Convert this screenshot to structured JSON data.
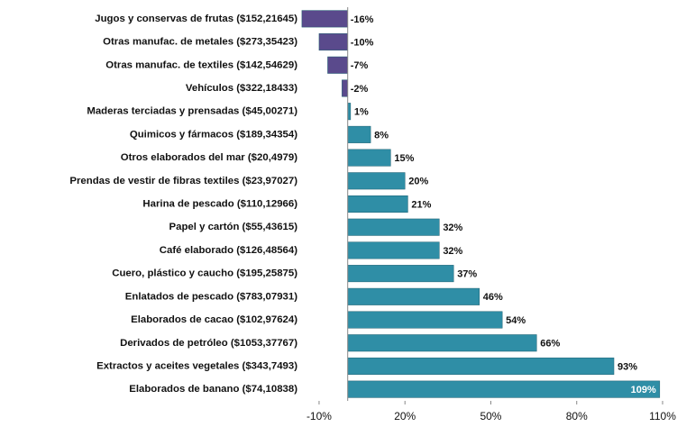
{
  "chart_data": {
    "type": "bar",
    "orientation": "horizontal",
    "categories": [
      "Jugos y conservas de frutas ($152,21645)",
      "Otras manufac. de metales ($273,35423)",
      "Otras manufac. de textiles ($142,54629)",
      "Vehículos ($322,18433)",
      "Maderas terciadas y prensadas  ($45,00271)",
      "Quimicos y fármacos ($189,34354)",
      "Otros elaborados del mar ($20,4979)",
      "Prendas de vestir de fibras textiles ($23,97027)",
      "Harina de pescado ($110,12966)",
      "Papel y cartón ($55,43615)",
      "Café elaborado ($126,48564)",
      "Cuero, plástico y caucho ($195,25875)",
      "Enlatados de pescado ($783,07931)",
      "Elaborados de cacao ($102,97624)",
      "Derivados de petróleo ($1053,37767)",
      "Extractos y aceites vegetales ($343,7493)",
      "Elaborados de  banano ($74,10838)"
    ],
    "values": [
      -16,
      -10,
      -7,
      -2,
      1,
      8,
      15,
      20,
      21,
      32,
      32,
      37,
      46,
      54,
      66,
      93,
      109
    ],
    "value_labels": [
      "-16%",
      "-10%",
      "-7%",
      "-2%",
      "1%",
      "8%",
      "15%",
      "20%",
      "21%",
      "32%",
      "32%",
      "37%",
      "46%",
      "54%",
      "66%",
      "93%",
      "109%"
    ],
    "color": "#2f8ea6",
    "negative_color": "#5a4a8c",
    "xlim": [
      -20,
      110
    ],
    "xticks": [
      {
        "value": -10,
        "label": "-10%"
      },
      {
        "value": 20,
        "label": "20%"
      },
      {
        "value": 50,
        "label": "50%"
      },
      {
        "value": 80,
        "label": "80%"
      },
      {
        "value": 110,
        "label": "110%"
      }
    ]
  }
}
